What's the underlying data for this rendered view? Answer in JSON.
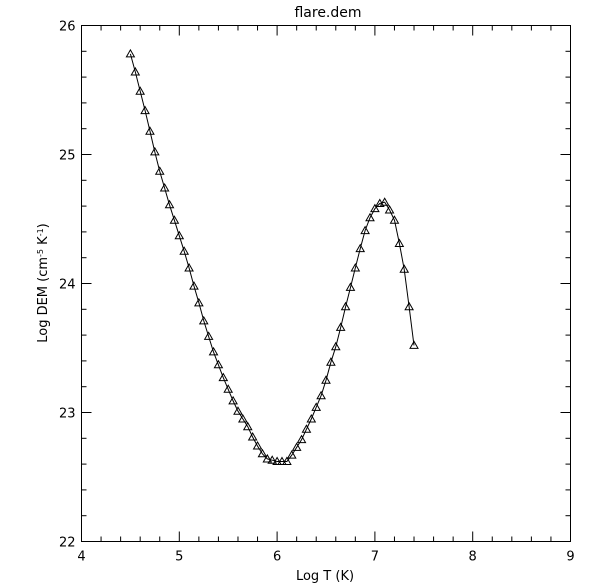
{
  "chart_data": {
    "type": "line",
    "title": "flare.dem",
    "xlabel": "Log T (K)",
    "ylabel_main": "Log DEM (cm",
    "ylabel_sup1": "-5",
    "ylabel_mid": " K",
    "ylabel_sup2": "-1",
    "ylabel_end": ")",
    "xlim": [
      4,
      9
    ],
    "ylim": [
      22,
      26
    ],
    "xticks": [
      4,
      5,
      6,
      7,
      8,
      9
    ],
    "xtick_labels": [
      "4",
      "5",
      "6",
      "7",
      "8",
      "9"
    ],
    "yticks": [
      22,
      23,
      24,
      25,
      26
    ],
    "ytick_labels": [
      "22",
      "23",
      "24",
      "25",
      "26"
    ],
    "x_minor_step": 0.2,
    "y_minor_step": 0.2,
    "grid": false,
    "marker": "triangle",
    "x": [
      4.5,
      4.55,
      4.6,
      4.65,
      4.7,
      4.75,
      4.8,
      4.85,
      4.9,
      4.95,
      5.0,
      5.05,
      5.1,
      5.15,
      5.2,
      5.25,
      5.3,
      5.35,
      5.4,
      5.45,
      5.5,
      5.55,
      5.6,
      5.65,
      5.7,
      5.75,
      5.8,
      5.85,
      5.9,
      5.95,
      6.0,
      6.05,
      6.1,
      6.15,
      6.2,
      6.25,
      6.3,
      6.35,
      6.4,
      6.45,
      6.5,
      6.55,
      6.6,
      6.65,
      6.7,
      6.75,
      6.8,
      6.85,
      6.9,
      6.95,
      7.0,
      7.05,
      7.1,
      7.15,
      7.2,
      7.25,
      7.3,
      7.35,
      7.4
    ],
    "y": [
      25.78,
      25.64,
      25.49,
      25.34,
      25.18,
      25.02,
      24.87,
      24.74,
      24.61,
      24.49,
      24.37,
      24.25,
      24.12,
      23.98,
      23.85,
      23.71,
      23.59,
      23.47,
      23.37,
      23.27,
      23.18,
      23.09,
      23.01,
      22.95,
      22.89,
      22.81,
      22.74,
      22.68,
      22.64,
      22.63,
      22.62,
      22.62,
      22.62,
      22.67,
      22.73,
      22.79,
      22.87,
      22.95,
      23.04,
      23.13,
      23.25,
      23.39,
      23.51,
      23.66,
      23.82,
      23.97,
      24.12,
      24.27,
      24.41,
      24.51,
      24.58,
      24.62,
      24.63,
      24.57,
      24.49,
      24.31,
      24.11,
      23.82,
      23.52
    ]
  }
}
